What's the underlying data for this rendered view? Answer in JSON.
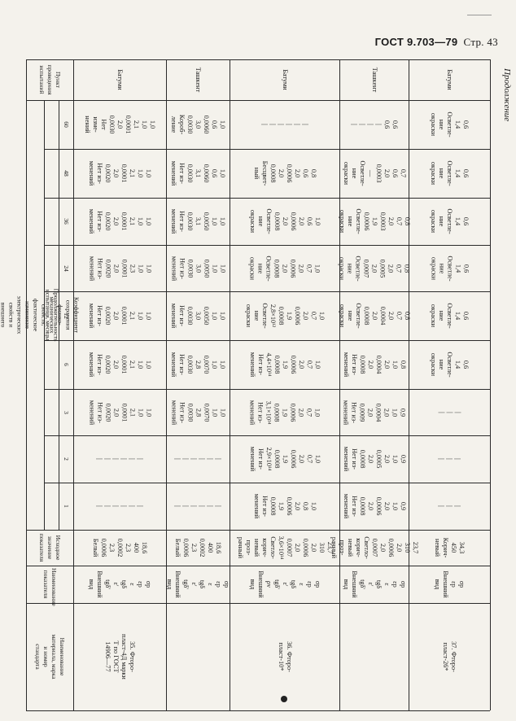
{
  "header": {
    "title": "ГОСТ 9.703—79",
    "page": "Стр. 43"
  },
  "continuation": "Продолжение",
  "columns": {
    "c0": "Наименование материала, марка и номер стандарта",
    "c1": "Наименование показателя",
    "c2": "Исходное значение показателя",
    "retention": "Коэффициент сохранения физико-механических свойств, фактическое изменение электрических свойств и внешнего вида",
    "duration": "Продолжительность испытания, месяцы",
    "months": [
      "1",
      "2",
      "3",
      "6",
      "12",
      "24",
      "36",
      "48",
      "60"
    ],
    "site": "Пункт проведения испытаний"
  },
  "rows": [
    {
      "material": [
        "35. Фторо-",
        "пласт-4Д марки",
        "Т по ГОСТ",
        "14906—77"
      ],
      "indicators": [
        "σр",
        "εр",
        "ε",
        "tgδ",
        "ε'",
        "tgδ'",
        "Внешний",
        "вид"
      ],
      "initial": [
        "18,6",
        "400",
        "2,3",
        "0,0002",
        "2,3",
        "0,0006",
        "Белый"
      ],
      "m1": [
        "|",
        "|",
        "|",
        "|",
        "|",
        "|"
      ],
      "m2": [
        "|",
        "|",
        "|",
        "|",
        "|",
        "|"
      ],
      "m3": [
        "1,0",
        "1,0",
        "2,1",
        "0,0001",
        "2,0",
        "0,0020",
        "Нет из-",
        "менений"
      ],
      "m6": [
        "1,0",
        "1,0",
        "2,1",
        "0,0001",
        "2,0",
        "0,0020",
        "Нет из-",
        "менений"
      ],
      "m12": [
        "1,0",
        "1,0",
        "2,1",
        "0,0001",
        "2,0",
        "0,0020",
        "Нет из-",
        "менений"
      ],
      "m24": [
        "1,0",
        "1,0",
        "2,3",
        "0,0001",
        "2,0",
        "0,0020",
        "Нет из-",
        "менений"
      ],
      "m36": [
        "1,0",
        "1,0",
        "2,1",
        "0,0001",
        "2,0",
        "0,0020",
        "Нет из-",
        "менений"
      ],
      "m48": [
        "1,0",
        "1,0",
        "2,1",
        "0,0001",
        "2,0",
        "0,0020",
        "Нет из-",
        "менений"
      ],
      "m60": [
        "1,0",
        "1,0",
        "2,1",
        "0,0001",
        "2,0",
        "0,0030",
        "Нет",
        "изме-",
        "нений"
      ],
      "site": "Батуми"
    },
    {
      "material": [],
      "indicators": [
        "σр",
        "εр",
        "ε",
        "tgδ",
        "ε'",
        "tgδ'",
        "Внешний",
        "вид"
      ],
      "initial": [
        "18,6",
        "400",
        "0,0002",
        "2,3",
        "0,0006",
        "Белый"
      ],
      "m1": [
        "|",
        "|",
        "|",
        "|",
        "|",
        "|"
      ],
      "m2": [
        "|",
        "|",
        "|",
        "|",
        "|",
        "|"
      ],
      "m3": [
        "1,0",
        "1,0",
        "0,0070",
        "2,8",
        "0,0030",
        "Нет из-",
        "менений"
      ],
      "m6": [
        "1,0",
        "1,0",
        "0,0070",
        "2,8",
        "0,0030",
        "Нет из-",
        "менений"
      ],
      "m12": [
        "1,0",
        "1,0",
        "0,0050",
        "3,0",
        "0,0030",
        "Нет из-",
        "менений"
      ],
      "m24": [
        "1,0",
        "1,0",
        "0,0050",
        "3,0",
        "0,0030",
        "Нет из-",
        "менений"
      ],
      "m36": [
        "1,0",
        "1,0",
        "0,0050",
        "3,1",
        "0,0030",
        "Нет из-",
        "менений"
      ],
      "m48": [
        "1,0",
        "0,6",
        "0,0060",
        "3,1",
        "0,0030",
        "Нет из-",
        "менений"
      ],
      "m60": [
        "1,0",
        "0,6",
        "0,0060",
        "3,0",
        "0,0030",
        "Короб-",
        "ление"
      ],
      "site": "Ташкент"
    },
    {
      "material": [
        "36. Фторо-",
        "пласт-10*"
      ],
      "indicators": [
        "σр",
        "εр",
        "ε",
        "tgδ",
        "ε'",
        "tgδ'",
        "ρv",
        "Внешний",
        "вид"
      ],
      "initial": [
        "23,7",
        "310",
        "2,0",
        "0,0006",
        "2,0",
        "0,0007",
        "3,6×10¹⁴",
        "Светло-",
        "корич-",
        "невый",
        "проз-",
        "рачный"
      ],
      "m1": [
        "1,0",
        "0,8",
        "2,0",
        "0,0006",
        "1,9",
        "0,0008",
        "Нет из-",
        "менений"
      ],
      "m2": [
        "1,0",
        "0,7",
        "2,0",
        "0,0006",
        "1,9",
        "0,0008",
        "2,9×10¹⁴",
        "Нет из-",
        "менений"
      ],
      "m3": [
        "1,0",
        "0,7",
        "2,0",
        "0,0006",
        "1,9",
        "0,0008",
        "3,1×10¹⁴",
        "Нет из-",
        "менений"
      ],
      "m6": [
        "1,0",
        "0,7",
        "2,0",
        "0,0006",
        "1,9",
        "0,0008",
        "4,4×10¹⁴",
        "Нет из-",
        "менений"
      ],
      "m12": [
        "1,0",
        "0,7",
        "2,0",
        "0,0006",
        "1,9",
        "0,0008",
        "2,8×10¹²",
        "Осветле-",
        "ние",
        "окраски"
      ],
      "m24": [
        "1,0",
        "0,7",
        "2,0",
        "0,0006",
        "2,0",
        "0,0008",
        "Осветле-",
        "ние",
        "окраски"
      ],
      "m36": [
        "1,0",
        "0,6",
        "2,0",
        "0,0006",
        "2,0",
        "0,0008",
        "Осветле-",
        "ние",
        "окраски"
      ],
      "m48": [
        "0,8",
        "0,6",
        "2,0",
        "0,0006",
        "2,0",
        "0,0008",
        "Бесцвет-",
        "ный"
      ],
      "m60": [
        "|",
        "|",
        "|",
        "|",
        "|",
        "|"
      ],
      "site": "Батуми"
    },
    {
      "material": [],
      "indicators": [
        "σр",
        "εр",
        "ε",
        "tgδ",
        "ε'",
        "tgδ'",
        "Внешний",
        "вид"
      ],
      "initial": [
        "23,7",
        "310",
        "2,0",
        "0,0006",
        "2,0",
        "0,0007",
        "Светло-",
        "корич-",
        "невый",
        "проз-",
        "рачный"
      ],
      "m1": [
        "0,9",
        "1,0",
        "2,0",
        "0,0006",
        "2,0",
        "0,0008",
        "Нет из-",
        "менений"
      ],
      "m2": [
        "0,9",
        "1,0",
        "2,0",
        "0,0005",
        "2,0",
        "0,0008",
        "Нет из-",
        "менений"
      ],
      "m3": [
        "0,9",
        "1,0",
        "2,0",
        "0,0004",
        "2,0",
        "0,0009",
        "Нет из-",
        "менений"
      ],
      "m6": [
        "0,8",
        "1,0",
        "2,0",
        "0,0004",
        "2,0",
        "0,0008",
        "Нет из-",
        "менений"
      ],
      "m12": [
        "0,8",
        "0,7",
        "2,0",
        "0,0004",
        "2,0",
        "0,0008",
        "Осветле-",
        "ние",
        "окраски"
      ],
      "m24": [
        "0,8",
        "0,7",
        "2,0",
        "0,0005",
        "2,0",
        "0,0007",
        "Осветле-",
        "ние",
        "окраски"
      ],
      "m36": [
        "0,8",
        "0,7",
        "2,0",
        "0,0003",
        "1,9",
        "0,0006",
        "Осветле-",
        "ние",
        "окраски"
      ],
      "m48": [
        "0,7",
        "0,6",
        "2,0",
        "0,0003",
        "—",
        "Осветле-",
        "ние",
        "окраски"
      ],
      "m60": [
        "0,6",
        "0,6",
        "|",
        "|",
        "|",
        "|"
      ],
      "site": "Ташкент"
    },
    {
      "material": [
        "37. Фторо-",
        "пласт-26*"
      ],
      "indicators": [
        "σр",
        "εр",
        "Внешний",
        "вид"
      ],
      "initial": [
        "34,3",
        "450",
        "Корич-",
        "невый"
      ],
      "m1": [
        "|",
        "|",
        "|"
      ],
      "m2": [
        "|",
        "|",
        "|"
      ],
      "m3": [
        "|",
        "|",
        "|"
      ],
      "m6": [
        "0,6",
        "1,4",
        "Осветле-",
        "ние",
        "окраски"
      ],
      "m12": [
        "0,6",
        "1,4",
        "Осветле-",
        "ние",
        "окраски"
      ],
      "m24": [
        "0,6",
        "1,4",
        "Осветле-",
        "ние",
        "окраски"
      ],
      "m36": [
        "0,6",
        "1,4",
        "Осветле-",
        "ние",
        "окраски"
      ],
      "m48": [
        "0,6",
        "1,4",
        "Осветле-",
        "ние",
        "окраски"
      ],
      "m60": [
        "0,6",
        "1,4",
        "Осветле-",
        "ние",
        "окраски"
      ],
      "site": "Батуми"
    }
  ]
}
